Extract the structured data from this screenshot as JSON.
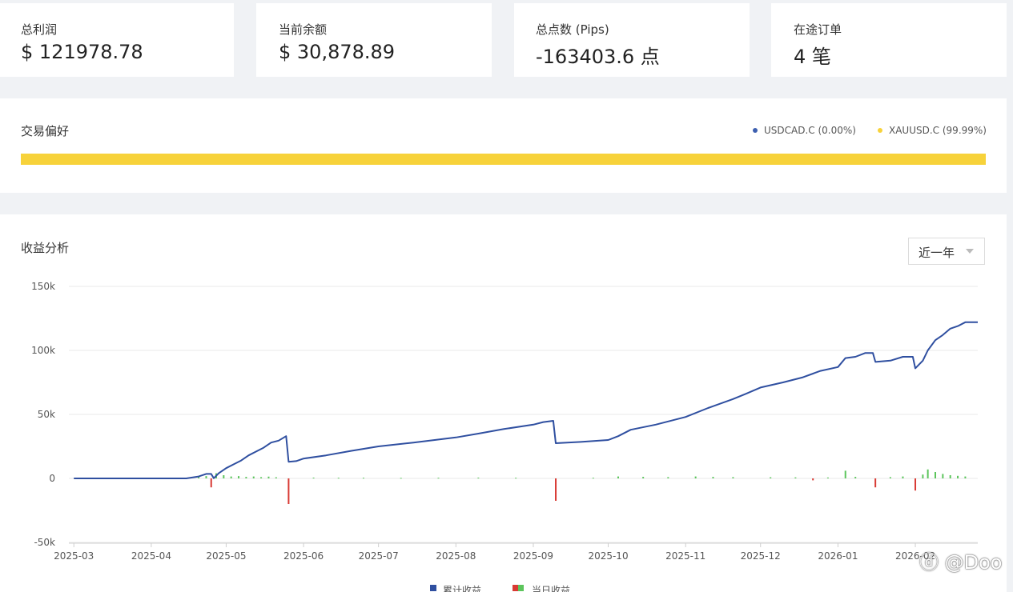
{
  "stats": [
    {
      "label": "总利润",
      "value": "$ 121978.78"
    },
    {
      "label": "当前余额",
      "value": "$ 30,878.89"
    },
    {
      "label": "总点数 (Pips)",
      "value": "-163403.6 点"
    },
    {
      "label": "在途订单",
      "value": "4 笔"
    }
  ],
  "preference": {
    "title": "交易偏好",
    "legend": [
      {
        "name": "USDCAD.C (0.00%)",
        "color": "#3d5fb0",
        "share": 0.0
      },
      {
        "name": "XAUUSD.C (99.99%)",
        "color": "#f7d23a",
        "share": 99.99
      }
    ],
    "bar_color": "#f7d23a"
  },
  "chart": {
    "title": "收益分析",
    "range_label": "近一年"
  },
  "chart_data": {
    "type": "line",
    "title": "",
    "xlabel": "",
    "ylabel": "",
    "ylim": [
      -50000,
      150000
    ],
    "yticks": [
      {
        "v": 150000,
        "label": "150k"
      },
      {
        "v": 100000,
        "label": "100k"
      },
      {
        "v": 50000,
        "label": "50k"
      },
      {
        "v": 0,
        "label": "0"
      },
      {
        "v": -50000,
        "label": "-50k"
      }
    ],
    "xlim": [
      "2025-02-27",
      "2026-02-26"
    ],
    "xticks": [
      {
        "date": "2025-03-01",
        "label": "2025-03"
      },
      {
        "date": "2025-04-01",
        "label": "2025-04"
      },
      {
        "date": "2025-05-01",
        "label": "2025-05"
      },
      {
        "date": "2025-06-01",
        "label": "2025-06"
      },
      {
        "date": "2025-07-01",
        "label": "2025-07"
      },
      {
        "date": "2025-08-01",
        "label": "2025-08"
      },
      {
        "date": "2025-09-01",
        "label": "2025-09"
      },
      {
        "date": "2025-10-01",
        "label": "2025-10"
      },
      {
        "date": "2025-11-01",
        "label": "2025-11"
      },
      {
        "date": "2025-12-01",
        "label": "2025-12"
      },
      {
        "date": "2026-01-01",
        "label": "2026-01"
      },
      {
        "date": "2026-02-01",
        "label": "2026-02"
      }
    ],
    "grid": true,
    "legend_position": "bottom",
    "series": [
      {
        "name": "累计收益",
        "type": "line",
        "color": "#2f4fa0",
        "points": [
          [
            "2025-03-01",
            0
          ],
          [
            "2025-04-15",
            0
          ],
          [
            "2025-04-20",
            1500
          ],
          [
            "2025-04-23",
            3500
          ],
          [
            "2025-04-25",
            3500
          ],
          [
            "2025-04-26",
            100
          ],
          [
            "2025-04-28",
            4000
          ],
          [
            "2025-05-01",
            8000
          ],
          [
            "2025-05-04",
            11000
          ],
          [
            "2025-05-07",
            14000
          ],
          [
            "2025-05-10",
            18000
          ],
          [
            "2025-05-13",
            21000
          ],
          [
            "2025-05-16",
            24000
          ],
          [
            "2025-05-19",
            28000
          ],
          [
            "2025-05-22",
            29500
          ],
          [
            "2025-05-25",
            33000
          ],
          [
            "2025-05-26",
            13000
          ],
          [
            "2025-05-29",
            13500
          ],
          [
            "2025-06-01",
            15500
          ],
          [
            "2025-06-10",
            18000
          ],
          [
            "2025-06-20",
            21500
          ],
          [
            "2025-07-01",
            25000
          ],
          [
            "2025-07-15",
            28000
          ],
          [
            "2025-08-01",
            32000
          ],
          [
            "2025-08-10",
            35000
          ],
          [
            "2025-08-20",
            38500
          ],
          [
            "2025-09-01",
            42000
          ],
          [
            "2025-09-05",
            44000
          ],
          [
            "2025-09-09",
            45000
          ],
          [
            "2025-09-10",
            27500
          ],
          [
            "2025-09-20",
            28500
          ],
          [
            "2025-10-01",
            30000
          ],
          [
            "2025-10-05",
            33000
          ],
          [
            "2025-10-10",
            38000
          ],
          [
            "2025-10-20",
            42000
          ],
          [
            "2025-11-01",
            48000
          ],
          [
            "2025-11-10",
            55000
          ],
          [
            "2025-11-20",
            62000
          ],
          [
            "2025-11-25",
            66000
          ],
          [
            "2025-12-01",
            71000
          ],
          [
            "2025-12-10",
            75000
          ],
          [
            "2025-12-18",
            79000
          ],
          [
            "2025-12-25",
            84000
          ],
          [
            "2026-01-01",
            87000
          ],
          [
            "2026-01-04",
            94000
          ],
          [
            "2026-01-08",
            95000
          ],
          [
            "2026-01-12",
            98000
          ],
          [
            "2026-01-15",
            98000
          ],
          [
            "2026-01-16",
            91000
          ],
          [
            "2026-01-22",
            92000
          ],
          [
            "2026-01-27",
            95000
          ],
          [
            "2026-01-31",
            95000
          ],
          [
            "2026-02-01",
            86000
          ],
          [
            "2026-02-04",
            92000
          ],
          [
            "2026-02-06",
            100000
          ],
          [
            "2026-02-09",
            108000
          ],
          [
            "2026-02-12",
            112000
          ],
          [
            "2026-02-15",
            117000
          ],
          [
            "2026-02-18",
            119000
          ],
          [
            "2026-02-21",
            121979
          ],
          [
            "2026-02-26",
            121979
          ]
        ]
      },
      {
        "name": "当日收益",
        "type": "bar",
        "color_positive": "#5cc55c",
        "color_negative": "#d83a34",
        "bars": [
          [
            "2025-04-20",
            1200
          ],
          [
            "2025-04-23",
            1800
          ],
          [
            "2025-04-25",
            -7000
          ],
          [
            "2025-04-27",
            4000
          ],
          [
            "2025-04-30",
            2500
          ],
          [
            "2025-05-03",
            1500
          ],
          [
            "2025-05-06",
            1800
          ],
          [
            "2025-05-09",
            1200
          ],
          [
            "2025-05-12",
            1500
          ],
          [
            "2025-05-15",
            1000
          ],
          [
            "2025-05-18",
            1400
          ],
          [
            "2025-05-21",
            900
          ],
          [
            "2025-05-26",
            -20000
          ],
          [
            "2025-06-05",
            600
          ],
          [
            "2025-06-15",
            500
          ],
          [
            "2025-06-25",
            500
          ],
          [
            "2025-07-10",
            400
          ],
          [
            "2025-07-25",
            500
          ],
          [
            "2025-08-10",
            600
          ],
          [
            "2025-08-25",
            500
          ],
          [
            "2025-09-10",
            -17500
          ],
          [
            "2025-09-25",
            500
          ],
          [
            "2025-10-05",
            1500
          ],
          [
            "2025-10-15",
            1200
          ],
          [
            "2025-10-25",
            1000
          ],
          [
            "2025-11-05",
            1500
          ],
          [
            "2025-11-12",
            1200
          ],
          [
            "2025-11-20",
            1000
          ],
          [
            "2025-12-05",
            900
          ],
          [
            "2025-12-15",
            800
          ],
          [
            "2025-12-22",
            -1500
          ],
          [
            "2025-12-28",
            700
          ],
          [
            "2026-01-04",
            6000
          ],
          [
            "2026-01-08",
            1200
          ],
          [
            "2026-01-16",
            -7000
          ],
          [
            "2026-01-22",
            1000
          ],
          [
            "2026-01-27",
            1500
          ],
          [
            "2026-02-01",
            -9500
          ],
          [
            "2026-02-04",
            3000
          ],
          [
            "2026-02-06",
            7000
          ],
          [
            "2026-02-09",
            5000
          ],
          [
            "2026-02-12",
            3500
          ],
          [
            "2026-02-15",
            2500
          ],
          [
            "2026-02-18",
            2000
          ],
          [
            "2026-02-21",
            1500
          ]
        ]
      }
    ]
  }
}
